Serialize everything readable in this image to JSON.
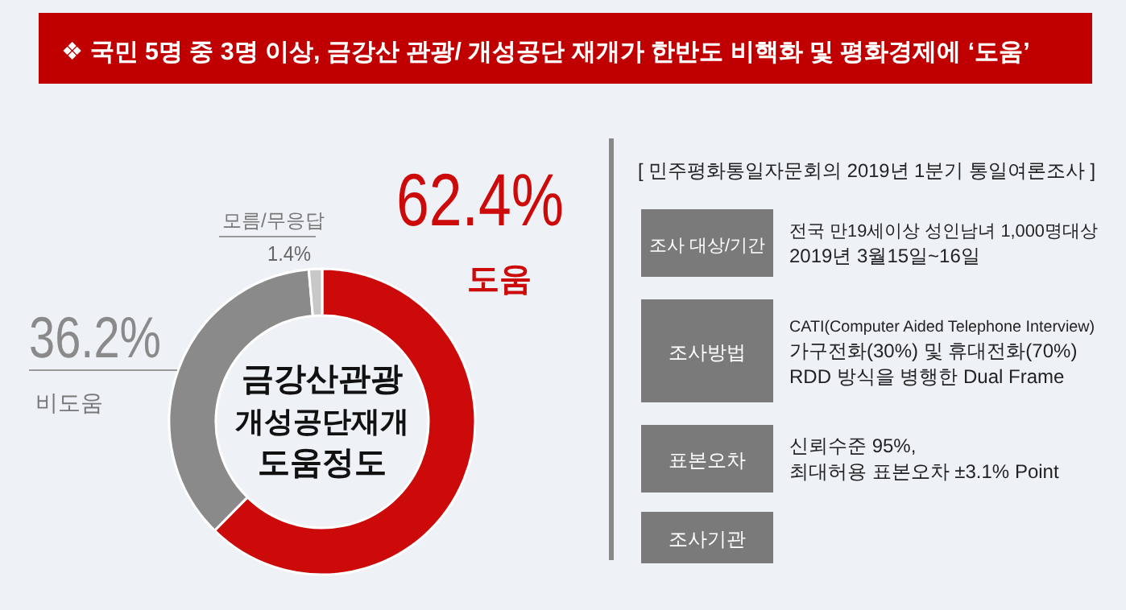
{
  "chart_data": [
    {
      "type": "donut",
      "title": "❖  국민 5명 중 3명 이상, 금강산 관광/ 개성공단 재개가 한반도 비핵화 및 평화경제에 ‘도움’",
      "categories": [
        "도움",
        "비도움",
        "모름/무응답"
      ],
      "values": [
        62.4,
        36.2,
        1.4
      ],
      "colors": [
        "#cc0a0a",
        "#8a8a8a",
        "#c8c8c8"
      ],
      "value_labels": [
        "62.4%",
        "36.2%",
        "1.4%"
      ],
      "annotations": [
        "금강산관광",
        "개성공단재개",
        "도움정도"
      ]
    },
    {
      "type": "other",
      "title": "[ 민주평화통일자문회의 2019년 1분기 통일여론조사 ]",
      "annotations": [
        "조사 대상/기간",
        "전국 만19세이상 성인남녀 1,000명대상\n2019년 3월15일~16일",
        "조사방법",
        "CATI(Computer Aided Telephone Interview)\n가구전화(30%) 및 휴대전화(70%)\nRDD 방식을 병행한 Dual Frame",
        "표본오차",
        "신뢰수준 95%,\n최대허용 표본오차 ±3.1% Point",
        "조사기관"
      ]
    }
  ]
}
